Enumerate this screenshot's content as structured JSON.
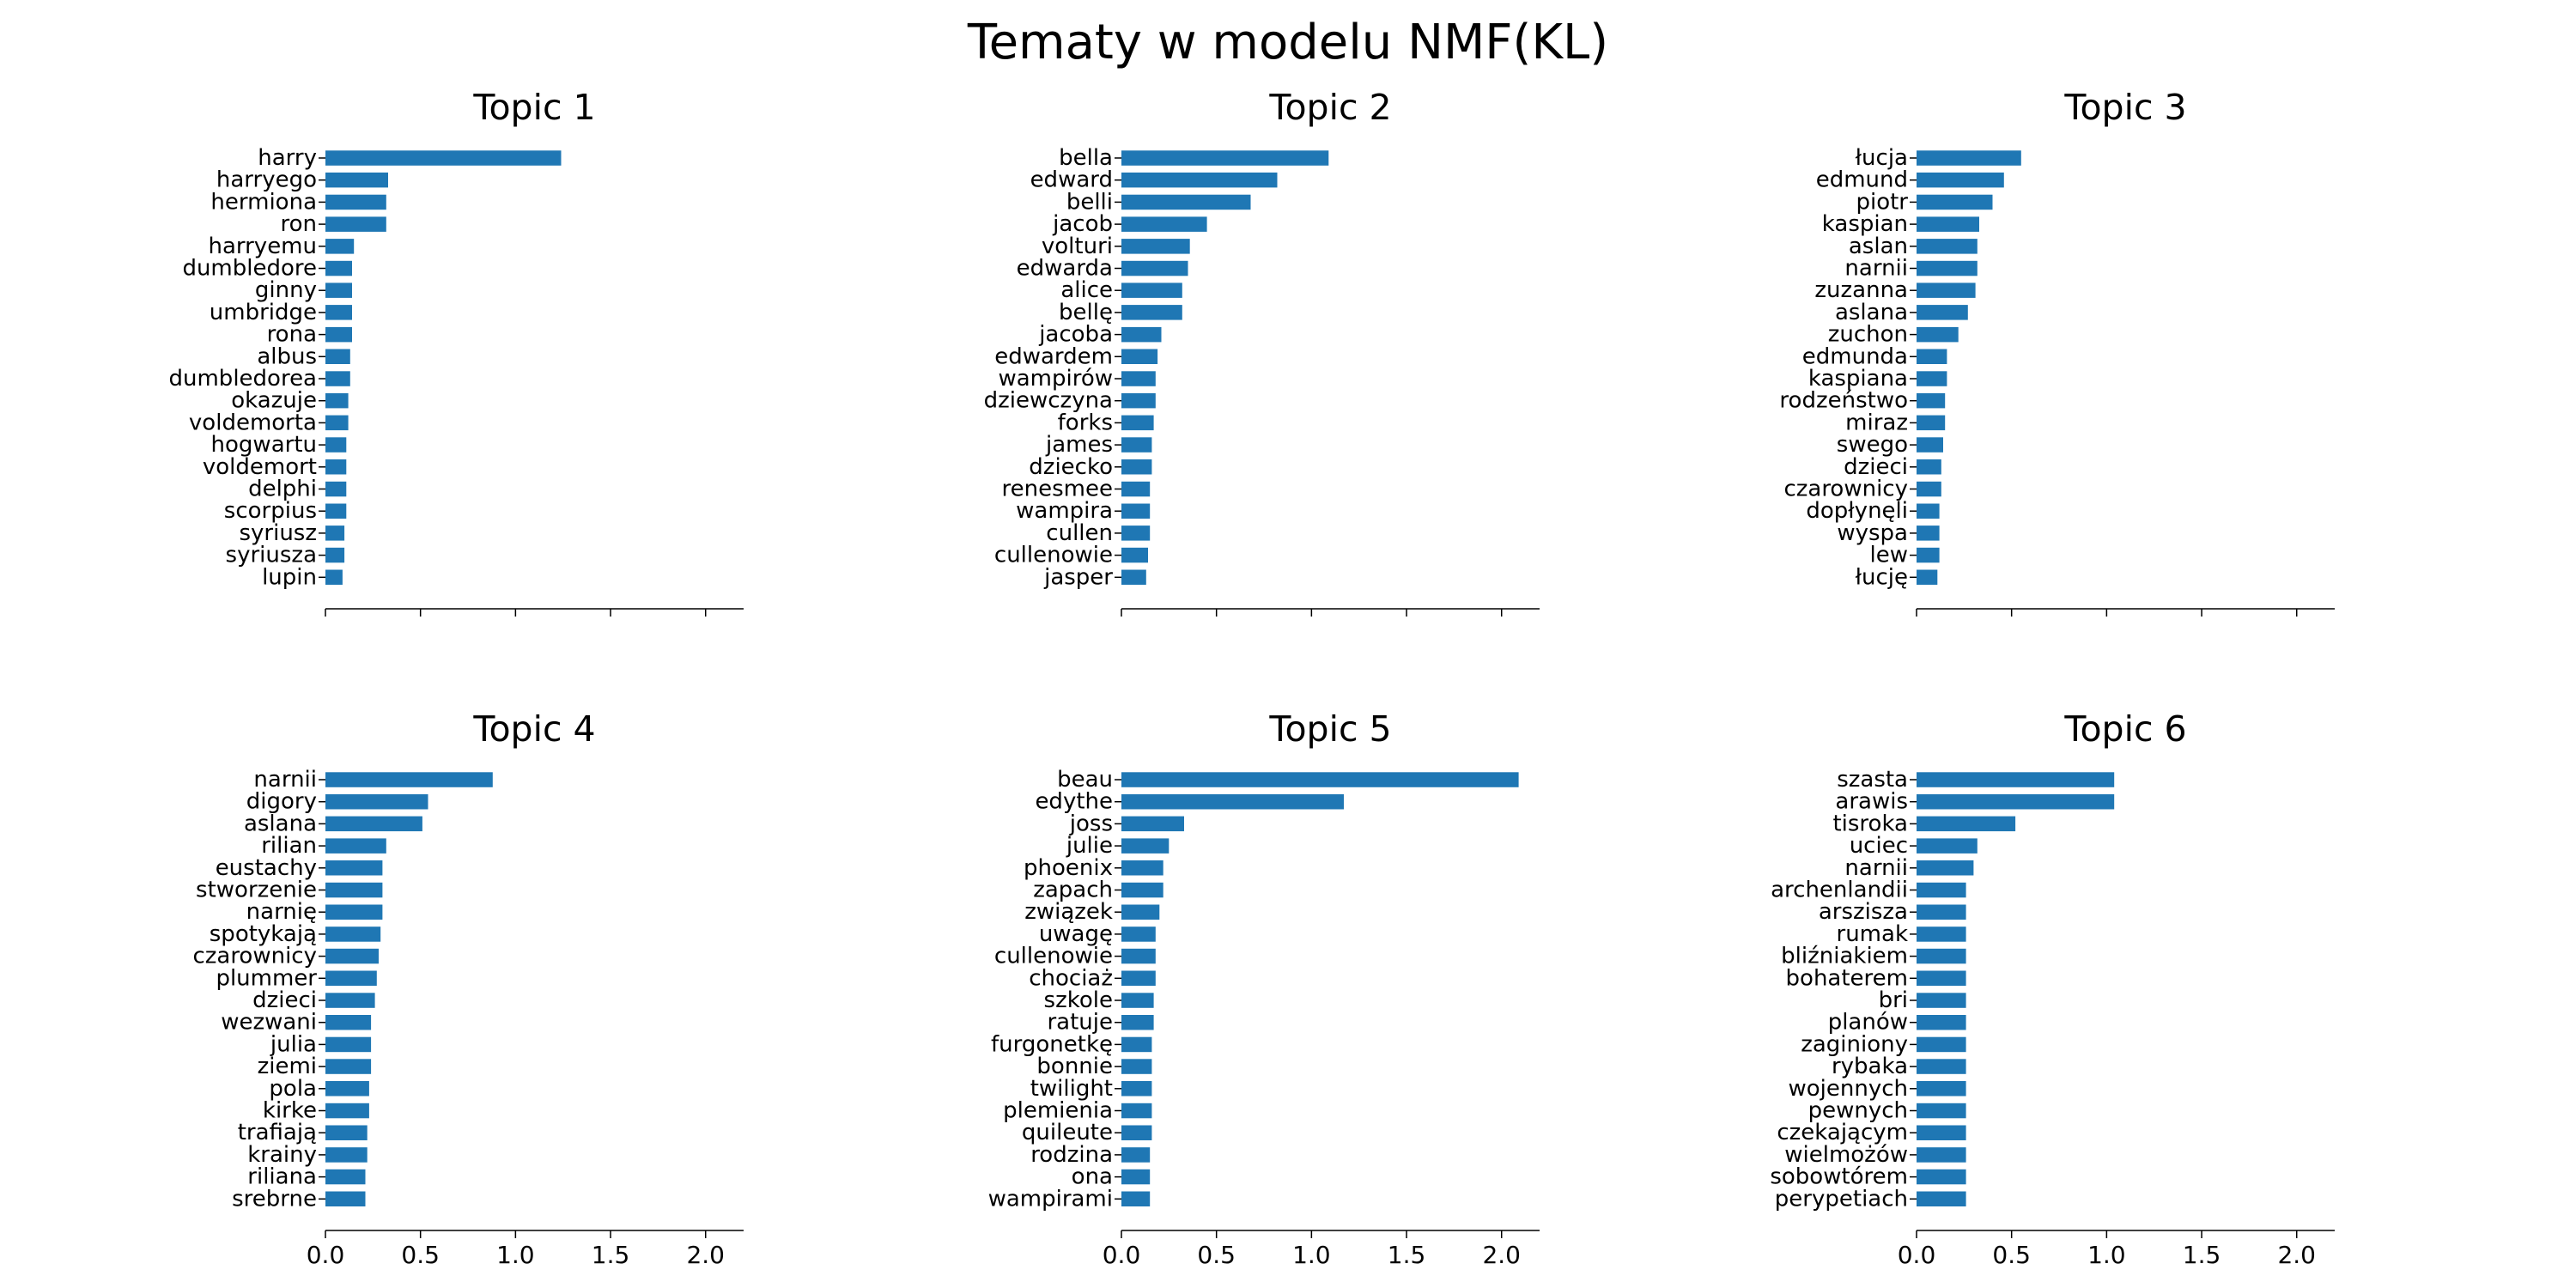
{
  "figure_title": "Tematy w modelu NMF(KL)",
  "colors": {
    "bar": "#1f77b4",
    "axis": "#000000"
  },
  "chart_data": [
    {
      "type": "bar",
      "orientation": "horizontal",
      "title": "Topic 1",
      "xlim": [
        0,
        2.2
      ],
      "xticks": [
        "0.0",
        "0.5",
        "1.0",
        "1.5",
        "2.0"
      ],
      "xtick_labels_visible": false,
      "categories": [
        "harry",
        "harryego",
        "hermiona",
        "ron",
        "harryemu",
        "dumbledore",
        "ginny",
        "umbridge",
        "rona",
        "albus",
        "dumbledorea",
        "okazuje",
        "voldemorta",
        "hogwartu",
        "voldemort",
        "delphi",
        "scorpius",
        "syriusz",
        "syriusza",
        "lupin"
      ],
      "values": [
        1.24,
        0.33,
        0.32,
        0.32,
        0.15,
        0.14,
        0.14,
        0.14,
        0.14,
        0.13,
        0.13,
        0.12,
        0.12,
        0.11,
        0.11,
        0.11,
        0.11,
        0.1,
        0.1,
        0.09
      ]
    },
    {
      "type": "bar",
      "orientation": "horizontal",
      "title": "Topic 2",
      "xlim": [
        0,
        2.2
      ],
      "xticks": [
        "0.0",
        "0.5",
        "1.0",
        "1.5",
        "2.0"
      ],
      "xtick_labels_visible": false,
      "categories": [
        "bella",
        "edward",
        "belli",
        "jacob",
        "volturi",
        "edwarda",
        "alice",
        "bellę",
        "jacoba",
        "edwardem",
        "wampirów",
        "dziewczyna",
        "forks",
        "james",
        "dziecko",
        "renesmee",
        "wampira",
        "cullen",
        "cullenowie",
        "jasper"
      ],
      "values": [
        1.09,
        0.82,
        0.68,
        0.45,
        0.36,
        0.35,
        0.32,
        0.32,
        0.21,
        0.19,
        0.18,
        0.18,
        0.17,
        0.16,
        0.16,
        0.15,
        0.15,
        0.15,
        0.14,
        0.13
      ]
    },
    {
      "type": "bar",
      "orientation": "horizontal",
      "title": "Topic 3",
      "xlim": [
        0,
        2.2
      ],
      "xticks": [
        "0.0",
        "0.5",
        "1.0",
        "1.5",
        "2.0"
      ],
      "xtick_labels_visible": false,
      "categories": [
        "łucja",
        "edmund",
        "piotr",
        "kaspian",
        "aslan",
        "narnii",
        "zuzanna",
        "aslana",
        "zuchon",
        "edmunda",
        "kaspiana",
        "rodzeństwo",
        "miraz",
        "swego",
        "dzieci",
        "czarownicy",
        "dopłynęli",
        "wyspa",
        "lew",
        "łucję"
      ],
      "values": [
        0.55,
        0.46,
        0.4,
        0.33,
        0.32,
        0.32,
        0.31,
        0.27,
        0.22,
        0.16,
        0.16,
        0.15,
        0.15,
        0.14,
        0.13,
        0.13,
        0.12,
        0.12,
        0.12,
        0.11
      ]
    },
    {
      "type": "bar",
      "orientation": "horizontal",
      "title": "Topic 4",
      "xlim": [
        0,
        2.2
      ],
      "xticks": [
        "0.0",
        "0.5",
        "1.0",
        "1.5",
        "2.0"
      ],
      "xtick_labels_visible": true,
      "categories": [
        "narnii",
        "digory",
        "aslana",
        "rilian",
        "eustachy",
        "stworzenie",
        "narnię",
        "spotykają",
        "czarownicy",
        "plummer",
        "dzieci",
        "wezwani",
        "julia",
        "ziemi",
        "pola",
        "kirke",
        "trafiają",
        "krainy",
        "riliana",
        "srebrne"
      ],
      "values": [
        0.88,
        0.54,
        0.51,
        0.32,
        0.3,
        0.3,
        0.3,
        0.29,
        0.28,
        0.27,
        0.26,
        0.24,
        0.24,
        0.24,
        0.23,
        0.23,
        0.22,
        0.22,
        0.21,
        0.21
      ]
    },
    {
      "type": "bar",
      "orientation": "horizontal",
      "title": "Topic 5",
      "xlim": [
        0,
        2.2
      ],
      "xticks": [
        "0.0",
        "0.5",
        "1.0",
        "1.5",
        "2.0"
      ],
      "xtick_labels_visible": true,
      "categories": [
        "beau",
        "edythe",
        "joss",
        "julie",
        "phoenix",
        "zapach",
        "związek",
        "uwagę",
        "cullenowie",
        "chociaż",
        "szkole",
        "ratuje",
        "furgonetkę",
        "bonnie",
        "twilight",
        "plemienia",
        "quileute",
        "rodzina",
        "ona",
        "wampirami"
      ],
      "values": [
        2.09,
        1.17,
        0.33,
        0.25,
        0.22,
        0.22,
        0.2,
        0.18,
        0.18,
        0.18,
        0.17,
        0.17,
        0.16,
        0.16,
        0.16,
        0.16,
        0.16,
        0.15,
        0.15,
        0.15
      ]
    },
    {
      "type": "bar",
      "orientation": "horizontal",
      "title": "Topic 6",
      "xlim": [
        0,
        2.2
      ],
      "xticks": [
        "0.0",
        "0.5",
        "1.0",
        "1.5",
        "2.0"
      ],
      "xtick_labels_visible": true,
      "categories": [
        "szasta",
        "arawis",
        "tisroka",
        "uciec",
        "narnii",
        "archenlandii",
        "arszisza",
        "rumak",
        "bliźniakiem",
        "bohaterem",
        "bri",
        "planów",
        "zaginiony",
        "rybaka",
        "wojennych",
        "pewnych",
        "czekającym",
        "wielmożów",
        "sobowtórem",
        "perypetiach"
      ],
      "values": [
        1.04,
        1.04,
        0.52,
        0.32,
        0.3,
        0.26,
        0.26,
        0.26,
        0.26,
        0.26,
        0.26,
        0.26,
        0.26,
        0.26,
        0.26,
        0.26,
        0.26,
        0.26,
        0.26,
        0.26
      ]
    }
  ]
}
